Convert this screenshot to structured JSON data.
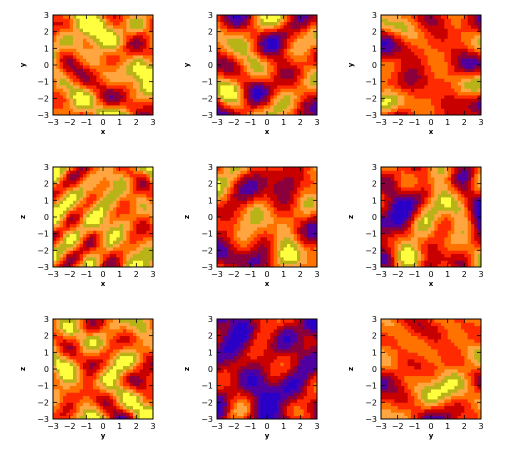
{
  "chart_data": {
    "type": "heatmap",
    "grid_rows": 3,
    "grid_cols": 3,
    "xlim": [
      -3,
      3
    ],
    "ylim": [
      -3,
      3
    ],
    "ticks": [
      "−3",
      "−2",
      "−1",
      "0",
      "1",
      "2",
      "3"
    ],
    "tick_values": [
      -3,
      -2,
      -1,
      0,
      1,
      2,
      3
    ],
    "colors": {
      "levels": [
        "#2a00c8",
        "#5000a0",
        "#8a003c",
        "#c80000",
        "#ff2a00",
        "#ff7200",
        "#ffa640",
        "#b8b418",
        "#ffff40"
      ]
    },
    "panels": [
      {
        "xlabel": "x",
        "ylabel": "y",
        "seed": 11,
        "bias": 0.35
      },
      {
        "xlabel": "x",
        "ylabel": "y",
        "seed": 23,
        "bias": 0.05
      },
      {
        "xlabel": "x",
        "ylabel": "y",
        "seed": 37,
        "bias": 0.0
      },
      {
        "xlabel": "x",
        "ylabel": "z",
        "seed": 41,
        "bias": 0.35
      },
      {
        "xlabel": "x",
        "ylabel": "z",
        "seed": 53,
        "bias": 0.05
      },
      {
        "xlabel": "x",
        "ylabel": "z",
        "seed": 67,
        "bias": 0.0
      },
      {
        "xlabel": "y",
        "ylabel": "z",
        "seed": 71,
        "bias": 0.3
      },
      {
        "xlabel": "y",
        "ylabel": "z",
        "seed": 83,
        "bias": -0.45
      },
      {
        "xlabel": "y",
        "ylabel": "z",
        "seed": 97,
        "bias": 0.15
      }
    ]
  }
}
